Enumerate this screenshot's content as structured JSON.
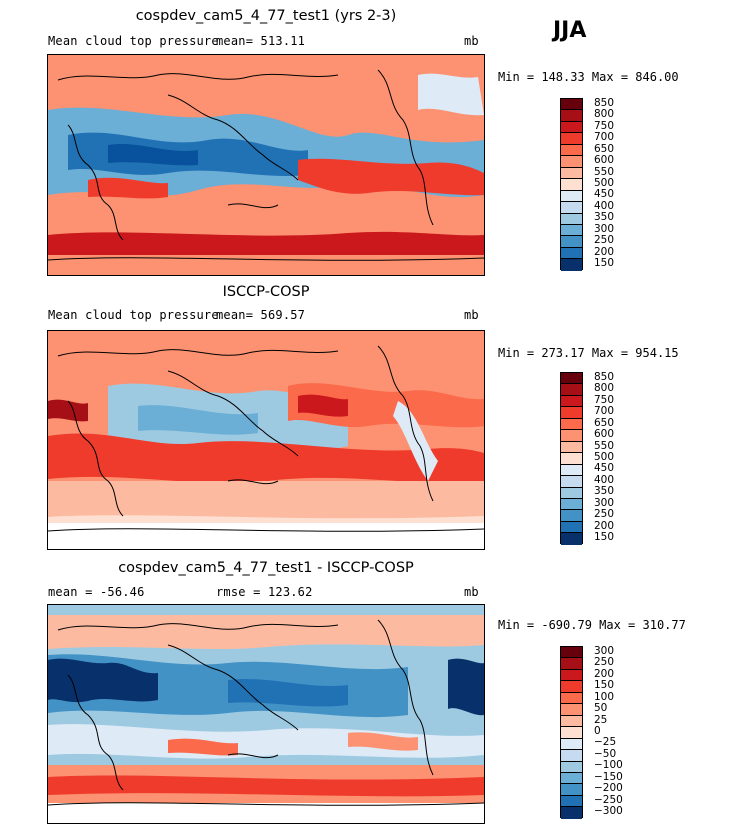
{
  "season": "JJA",
  "panels": [
    {
      "id": "model",
      "title": "cospdev_cam5_4_77_test1 (yrs 2-3)",
      "left_text": "Mean cloud top pressure",
      "center_text": "mean= 513.11",
      "units": "mb",
      "minmax": "Min = 148.33 Max = 846.00",
      "levels": [
        "850",
        "800",
        "750",
        "700",
        "650",
        "600",
        "550",
        "500",
        "450",
        "400",
        "350",
        "300",
        "250",
        "200",
        "150"
      ]
    },
    {
      "id": "obs",
      "title": "ISCCP-COSP",
      "left_text": "Mean cloud top pressure",
      "center_text": "mean= 569.57",
      "units": "mb",
      "minmax": "Min = 273.17 Max = 954.15",
      "levels": [
        "850",
        "800",
        "750",
        "700",
        "650",
        "600",
        "550",
        "500",
        "450",
        "400",
        "350",
        "300",
        "250",
        "200",
        "150"
      ]
    },
    {
      "id": "diff",
      "title": "cospdev_cam5_4_77_test1 - ISCCP-COSP",
      "left_text": "mean = -56.46",
      "center_text": "rmse = 123.62",
      "units": "mb",
      "minmax": "Min = -690.79 Max = 310.77",
      "levels": [
        "300",
        "250",
        "200",
        "150",
        "100",
        "50",
        "25",
        "0",
        "−25",
        "−50",
        "−100",
        "−150",
        "−200",
        "−250",
        "−300"
      ]
    }
  ],
  "colors": {
    "colorbar": [
      "#67000d",
      "#a50f15",
      "#cb181d",
      "#ef3b2c",
      "#fb6a4a",
      "#fc9272",
      "#fcbba1",
      "#fee0d2",
      "#deebf7",
      "#c6dbef",
      "#9ecae1",
      "#6baed6",
      "#4292c6",
      "#2171b5",
      "#08306b"
    ]
  }
}
